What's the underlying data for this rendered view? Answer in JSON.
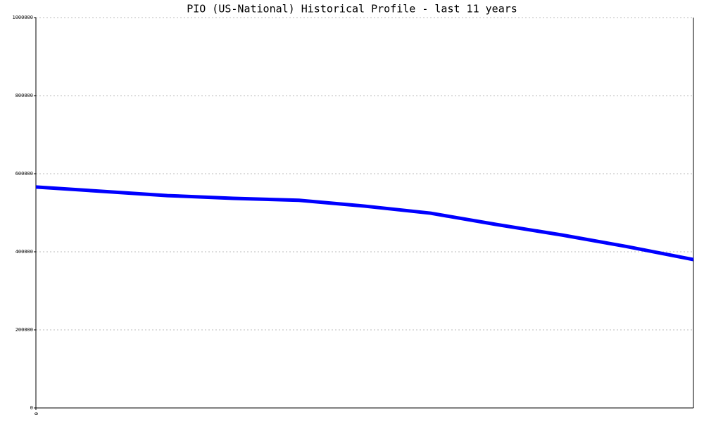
{
  "chart_data": {
    "type": "line",
    "title": "PIO (US-National) Historical Profile - last 11 years",
    "x": [
      0,
      1,
      2,
      3,
      4,
      5,
      6,
      7,
      8,
      9,
      10
    ],
    "series": [
      {
        "name": "PIO",
        "color": "#0000ff",
        "values": [
          566000,
          555000,
          544000,
          537000,
          532000,
          517000,
          499000,
          470000,
          443000,
          413000,
          380000
        ]
      }
    ],
    "xlim": [
      0,
      10
    ],
    "xticks": [
      0
    ],
    "ylim": [
      0,
      1000000
    ],
    "yticks": [
      0,
      200000,
      400000,
      600000,
      800000,
      1000000
    ],
    "grid": true
  }
}
